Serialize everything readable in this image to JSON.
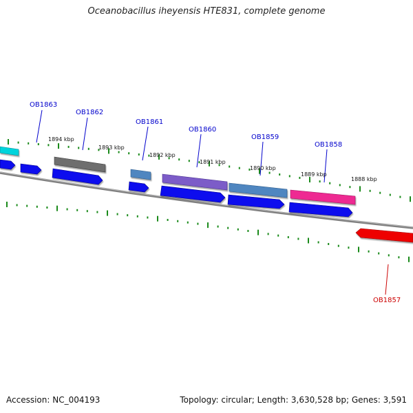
{
  "title": "Oceanobacillus iheyensis HTE831, complete genome",
  "accession": "Accession: NC_004193",
  "stats": "Topology: circular; Length: 3,630,528 bp; Genes: 3,591",
  "colors": {
    "background": "#ffffff",
    "backbone": "#808080",
    "tick": "#1a8a1a",
    "label_blue": "#0000cc",
    "label_red": "#cc0000"
  },
  "ticks": [
    "1894 kbp",
    "1893 kbp",
    "1892 kbp",
    "1891 kbp",
    "1890 kbp",
    "1889 kbp",
    "1888 kbp"
  ],
  "gene_labels": [
    "OB1863",
    "OB1862",
    "OB1861",
    "OB1860",
    "OB1859",
    "OB1858",
    "OB1857"
  ]
}
